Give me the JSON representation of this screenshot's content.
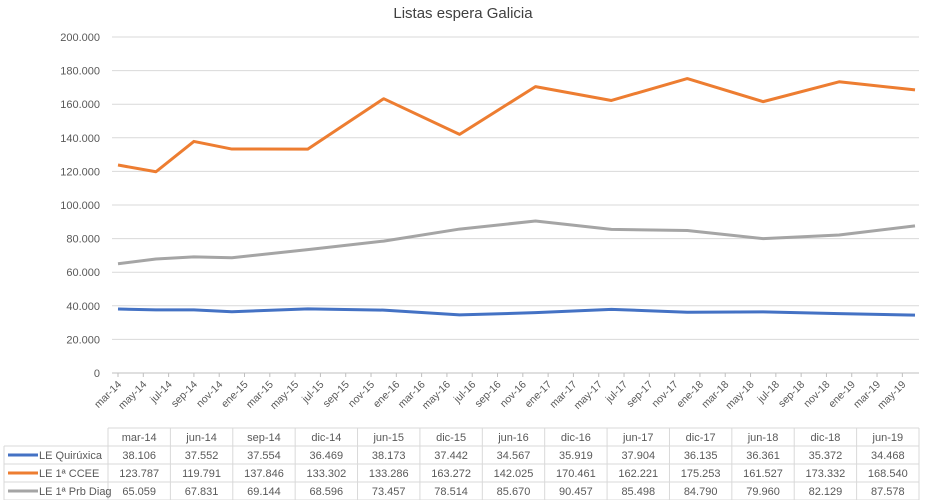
{
  "chart_data": {
    "type": "line",
    "title": "Listas espera Galicia",
    "xlabel": "",
    "ylabel": "",
    "ylim": [
      0,
      200000
    ],
    "y_ticks": [
      "0",
      "20.000",
      "40.000",
      "60.000",
      "80.000",
      "100.000",
      "120.000",
      "140.000",
      "160.000",
      "180.000",
      "200.000"
    ],
    "x_tick_labels": [
      "mar-14",
      "may-14",
      "jul-14",
      "sep-14",
      "nov-14",
      "ene-15",
      "mar-15",
      "may-15",
      "jul-15",
      "sep-15",
      "nov-15",
      "ene-16",
      "mar-16",
      "may-16",
      "jul-16",
      "sep-16",
      "nov-16",
      "ene-17",
      "mar-17",
      "may-17",
      "jul-17",
      "sep-17",
      "nov-17",
      "ene-18",
      "mar-18",
      "may-18",
      "jul-18",
      "sep-18",
      "nov-18",
      "ene-19",
      "mar-19",
      "may-19"
    ],
    "categories": [
      "mar-14",
      "jun-14",
      "sep-14",
      "dic-14",
      "jun-15",
      "dic-15",
      "jun-16",
      "dic-16",
      "jun-17",
      "dic-17",
      "jun-18",
      "dic-18",
      "jun-19"
    ],
    "grid": true,
    "legend": "data-table",
    "series": [
      {
        "name": "LE Quirúxica",
        "color": "#4472C4",
        "values": [
          38106,
          37552,
          37554,
          36469,
          38173,
          37442,
          34567,
          35919,
          37904,
          36135,
          36361,
          35372,
          34468
        ],
        "labels": [
          "38.106",
          "37.552",
          "37.554",
          "36.469",
          "38.173",
          "37.442",
          "34.567",
          "35.919",
          "37.904",
          "36.135",
          "36.361",
          "35.372",
          "34.468"
        ]
      },
      {
        "name": "LE 1ª CCEE",
        "color": "#ED7D31",
        "values": [
          123787,
          119791,
          137846,
          133302,
          133286,
          163272,
          142025,
          170461,
          162221,
          175253,
          161527,
          173332,
          168540
        ],
        "labels": [
          "123.787",
          "119.791",
          "137.846",
          "133.302",
          "133.286",
          "163.272",
          "142.025",
          "170.461",
          "162.221",
          "175.253",
          "161.527",
          "173.332",
          "168.540"
        ]
      },
      {
        "name": "LE 1ª Prb Diag",
        "color": "#A5A5A5",
        "values": [
          65059,
          67831,
          69144,
          68596,
          73457,
          78514,
          85670,
          90457,
          85498,
          84790,
          79960,
          82129,
          87578
        ],
        "labels": [
          "65.059",
          "67.831",
          "69.144",
          "68.596",
          "73.457",
          "78.514",
          "85.670",
          "90.457",
          "85.498",
          "84.790",
          "79.960",
          "82.129",
          "87.578"
        ]
      }
    ]
  }
}
